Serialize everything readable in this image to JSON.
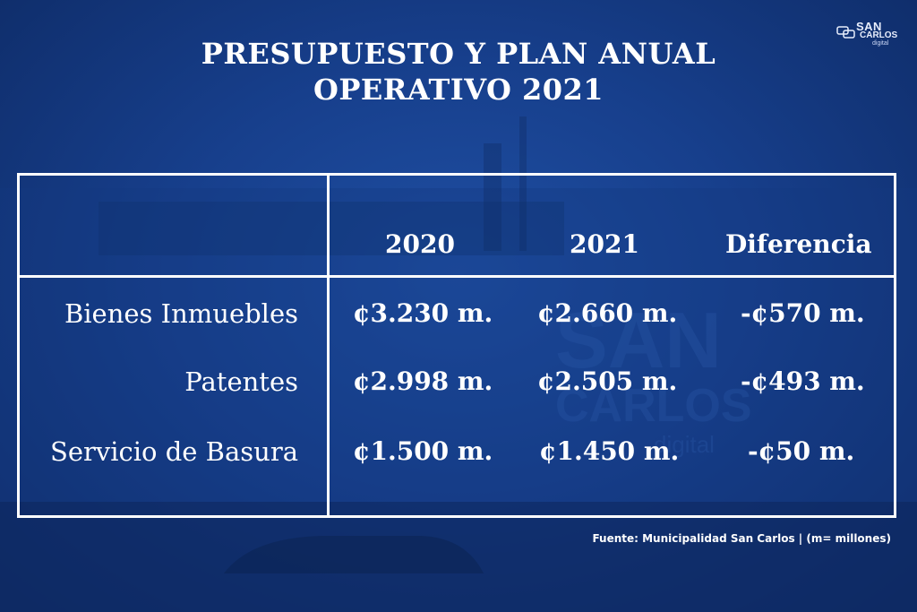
{
  "title": {
    "line1": "PRESUPUESTO Y PLAN ANUAL",
    "line2": "OPERATIVO 2021"
  },
  "logo": {
    "name": "SAN CARLOS",
    "line1": "SAN",
    "line2": "CARLOS",
    "line3": "digital"
  },
  "table": {
    "headers": [
      "2020",
      "2021",
      "Diferencia"
    ],
    "rows": [
      {
        "label": "Bienes Inmuebles",
        "y2020": "¢3.230 m.",
        "y2021": "¢2.660 m.",
        "diff": "-¢570 m."
      },
      {
        "label": "Patentes",
        "y2020": "¢2.998 m.",
        "y2021": "¢2.505 m.",
        "diff": "-¢493 m."
      },
      {
        "label": "Servicio de Basura",
        "y2020": "¢1.500 m.",
        "y2021": "¢1.450 m.",
        "diff": "-¢50 m."
      }
    ]
  },
  "footer": "Fuente: Municipalidad San Carlos | (m= millones)",
  "colors": {
    "background": "#173f8c",
    "text": "#ffffff"
  }
}
